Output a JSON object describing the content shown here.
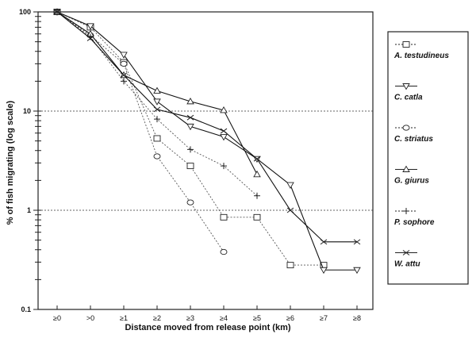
{
  "chart_data": {
    "type": "line",
    "xlabel": "Distance moved from release point (km)",
    "ylabel": "% of fish migrating (log scale)",
    "categories": [
      "≥0",
      ">0",
      "≥1",
      "≥2",
      "≥3",
      "≥4",
      "≥5",
      "≥6",
      "≥7",
      "≥8"
    ],
    "yscale": "log",
    "ylim": [
      0.1,
      100
    ],
    "yticks": [
      "0.1",
      "1",
      "10",
      "100"
    ],
    "grid": "horizontal dotted at 1 and 10",
    "legend_position": "right",
    "series": [
      {
        "name": "A. testudineus",
        "marker": "square",
        "line": "dotted",
        "values": [
          100,
          70,
          31,
          5.3,
          2.8,
          0.85,
          0.85,
          0.28,
          0.28,
          null
        ]
      },
      {
        "name": "C. catla",
        "marker": "triangle-down",
        "line": "solid",
        "values": [
          100,
          72,
          37,
          12.5,
          7,
          5.5,
          3.3,
          1.8,
          0.25,
          0.25
        ]
      },
      {
        "name": "C. striatus",
        "marker": "circle",
        "line": "dotted",
        "values": [
          100,
          58,
          30,
          3.5,
          1.2,
          0.38,
          null,
          null,
          null,
          null
        ]
      },
      {
        "name": "G. giurus",
        "marker": "triangle-up",
        "line": "solid",
        "values": [
          100,
          60,
          23,
          16,
          12.5,
          10.2,
          2.3,
          null,
          null,
          null
        ]
      },
      {
        "name": "P. sophore",
        "marker": "plus",
        "line": "dotted",
        "values": [
          100,
          56,
          20,
          8.3,
          4.1,
          2.8,
          1.4,
          null,
          null,
          null
        ]
      },
      {
        "name": "W. attu",
        "marker": "x",
        "line": "solid",
        "values": [
          100,
          54,
          23,
          10.4,
          8.6,
          6.3,
          3.3,
          1.0,
          0.48,
          0.48
        ]
      }
    ]
  }
}
